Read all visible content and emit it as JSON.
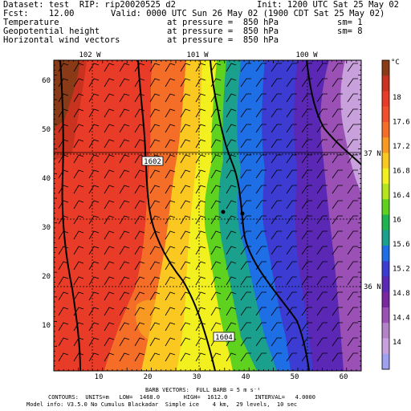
{
  "header": {
    "line1_left": "Dataset: test  RIP: rip20020525 d2",
    "line1_right": "Init: 1200 UTC Sat 25 May 02",
    "line2_left": "Fcst:    12.00",
    "line2_right": "Valid: 0000 UTC Sun 26 May 02 (1900 CDT Sat 25 May 02)",
    "fields": [
      {
        "name": "Temperature",
        "level": "at pressure =  850 hPa",
        "sm": "sm= 1"
      },
      {
        "name": "Geopotential height",
        "level": "at pressure =  850 hPa",
        "sm": "sm= 8"
      },
      {
        "name": "Horizontal wind vectors",
        "level": "at pressure =  850 hPa",
        "sm": ""
      }
    ]
  },
  "map": {
    "longitude_labels": [
      "102 W",
      "101 W",
      "100 W"
    ],
    "latitude_labels": [
      "37 N",
      "36 N"
    ],
    "x_ticks": [
      "10",
      "20",
      "30",
      "40",
      "50",
      "60"
    ],
    "y_ticks": [
      "10",
      "20",
      "30",
      "40",
      "50",
      "60"
    ],
    "height_labels": [
      "1602",
      "1604"
    ]
  },
  "colorbar": {
    "unit": "°C",
    "labels": [
      "18",
      "17.6",
      "17.2",
      "16.8",
      "16.4",
      "16",
      "15.6",
      "15.2",
      "14.8",
      "14.4",
      "14"
    ],
    "colors": [
      "#8a3a16",
      "#c8321e",
      "#e83c28",
      "#f0502c",
      "#f46e28",
      "#f89a22",
      "#fac820",
      "#f2f01e",
      "#b4e61e",
      "#5ed21e",
      "#1eb450",
      "#1aa08c",
      "#1e6ee6",
      "#3c3cd2",
      "#5a28b4",
      "#7a28a0",
      "#9a50b4",
      "#b482c8",
      "#c8a0dc",
      "#a0a0f0"
    ]
  },
  "footer": {
    "barb": "BARB VECTORS:  FULL BARB = 5 m s⁻¹",
    "contours": "CONTOURS:  UNITS=m   LOW=  1468.0       HIGH=  1612.0        INTERVAL=   4.0000",
    "model": "Model info: V3.5.0 No Cumulus Blackadar  Simple ice    4 km,  29 levels,  10 sec"
  }
}
